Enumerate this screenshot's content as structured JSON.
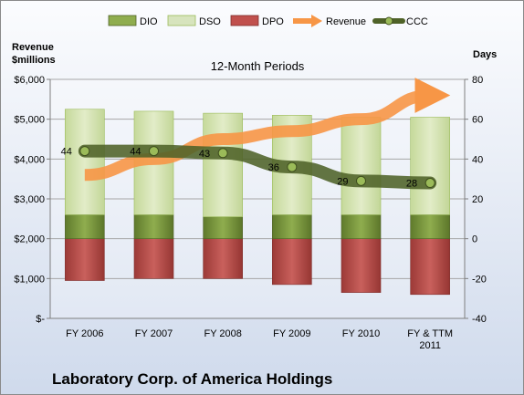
{
  "chart_data": {
    "type": "bar",
    "title": "12-Month Periods",
    "footer_title": "Laboratory Corp. of America Holdings",
    "left_axis_label_lines": [
      "Revenue",
      "$millions"
    ],
    "right_axis_label": "Days",
    "categories": [
      [
        "FY 2006"
      ],
      [
        "FY 2007"
      ],
      [
        "FY 2008"
      ],
      [
        "FY 2009"
      ],
      [
        "FY 2010"
      ],
      [
        "FY & TTM",
        "2011"
      ]
    ],
    "left_ticks": [
      "$-",
      "$1,000",
      "$2,000",
      "$3,000",
      "$4,000",
      "$5,000",
      "$6,000"
    ],
    "right_ticks": [
      "-40",
      "-20",
      "0",
      "20",
      "40",
      "60",
      "80"
    ],
    "ylim_left": [
      0,
      6000
    ],
    "ylim_right": [
      -40,
      80
    ],
    "grid": true,
    "legend_position": "top",
    "series": [
      {
        "name": "DIO",
        "axis": "right",
        "kind": "stacked-bar",
        "color": "#77933c",
        "values": [
          12,
          12,
          11,
          12,
          12,
          12
        ]
      },
      {
        "name": "DSO",
        "axis": "right",
        "kind": "stacked-bar",
        "color": "#d7e4bd",
        "values": [
          53,
          52,
          52,
          50,
          49,
          49
        ]
      },
      {
        "name": "DPO",
        "axis": "right",
        "kind": "negative-bar",
        "color": "#c0504d",
        "values": [
          -21,
          -20,
          -20,
          -23,
          -27,
          -28
        ]
      },
      {
        "name": "Revenue",
        "axis": "left",
        "kind": "arrow-line",
        "color": "#f79646",
        "values": [
          3600,
          4000,
          4500,
          4700,
          5000,
          5600
        ]
      },
      {
        "name": "CCC",
        "axis": "right",
        "kind": "line-markers",
        "color": "#4f6228",
        "values": [
          44,
          44,
          43,
          36,
          29,
          28
        ]
      }
    ],
    "data_labels": {
      "series": "CCC",
      "values": [
        "44",
        "44",
        "43",
        "36",
        "29",
        "28"
      ]
    }
  }
}
